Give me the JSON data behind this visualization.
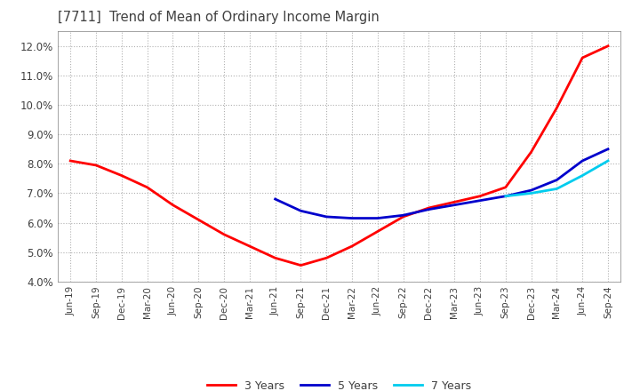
{
  "title": "[7711]  Trend of Mean of Ordinary Income Margin",
  "title_color": "#404040",
  "background_color": "#ffffff",
  "plot_bg_color": "#ffffff",
  "grid_color": "#b0b0b0",
  "ylim": [
    0.04,
    0.125
  ],
  "yticks": [
    0.04,
    0.05,
    0.06,
    0.07,
    0.08,
    0.09,
    0.1,
    0.11,
    0.12
  ],
  "x_labels": [
    "Jun-19",
    "Sep-19",
    "Dec-19",
    "Mar-20",
    "Jun-20",
    "Sep-20",
    "Dec-20",
    "Mar-21",
    "Jun-21",
    "Sep-21",
    "Dec-21",
    "Mar-22",
    "Jun-22",
    "Sep-22",
    "Dec-22",
    "Mar-23",
    "Jun-23",
    "Sep-23",
    "Dec-23",
    "Mar-24",
    "Jun-24",
    "Sep-24"
  ],
  "line_3yr": [
    0.081,
    0.0795,
    0.076,
    0.072,
    0.066,
    0.061,
    0.056,
    0.052,
    0.048,
    0.0455,
    0.048,
    0.052,
    0.057,
    0.062,
    0.065,
    0.067,
    0.069,
    0.072,
    0.084,
    0.099,
    0.116,
    0.12
  ],
  "line_5yr": [
    null,
    null,
    null,
    null,
    null,
    null,
    null,
    null,
    0.068,
    0.064,
    0.062,
    0.0615,
    0.0615,
    0.0625,
    0.0645,
    0.066,
    0.0675,
    0.069,
    0.071,
    0.0745,
    0.081,
    0.085
  ],
  "line_7yr": [
    null,
    null,
    null,
    null,
    null,
    null,
    null,
    null,
    null,
    null,
    null,
    null,
    null,
    null,
    null,
    null,
    null,
    0.069,
    0.07,
    0.0715,
    0.076,
    0.081
  ],
  "line_10yr": [
    null,
    null,
    null,
    null,
    null,
    null,
    null,
    null,
    null,
    null,
    null,
    null,
    null,
    null,
    null,
    null,
    null,
    null,
    null,
    null,
    null,
    null
  ],
  "color_3yr": "#ff0000",
  "color_5yr": "#0000cc",
  "color_7yr": "#00ccee",
  "color_10yr": "#008000",
  "lw": 2.0
}
